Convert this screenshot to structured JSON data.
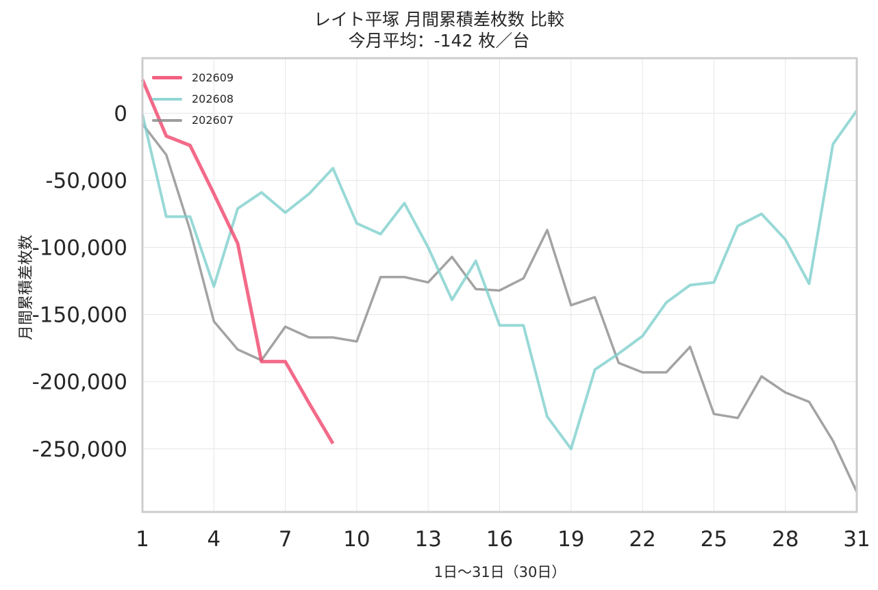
{
  "chart_data": {
    "type": "line",
    "title": "レイト平塚 月間累積差枚数 比較",
    "subtitle": "今月平均：-142 枚／台",
    "xlabel": "1日〜31日（30日）",
    "ylabel": "月間累積差枚数",
    "xlim": [
      1,
      31
    ],
    "ylim": [
      -297000,
      41000
    ],
    "x_ticks": [
      1,
      4,
      7,
      10,
      13,
      16,
      19,
      22,
      25,
      28,
      31
    ],
    "y_ticks": [
      0,
      -50000,
      -100000,
      -150000,
      -200000,
      -250000
    ],
    "y_tick_labels": [
      "0",
      "-50,000",
      "-100,000",
      "-150,000",
      "-200,000",
      "-250,000"
    ],
    "grid": true,
    "legend_position": "top-left",
    "series": [
      {
        "name": "202609",
        "color": "#f0456b",
        "x": [
          1,
          2,
          3,
          4,
          5,
          6,
          7,
          8,
          9
        ],
        "values": [
          25000,
          -17000,
          -24000,
          -60000,
          -97000,
          -185000,
          -185000,
          -216000,
          -246000
        ]
      },
      {
        "name": "202608",
        "color": "#7ed0cd",
        "x": [
          1,
          2,
          3,
          4,
          5,
          6,
          7,
          8,
          9,
          10,
          11,
          12,
          13,
          14,
          15,
          16,
          17,
          18,
          19,
          20,
          21,
          22,
          23,
          24,
          25,
          26,
          27,
          28,
          29,
          30,
          31
        ],
        "values": [
          -1000,
          -77000,
          -77000,
          -129000,
          -71000,
          -59000,
          -74000,
          -60000,
          -41000,
          -82000,
          -90000,
          -67000,
          -100000,
          -139000,
          -110000,
          -158000,
          -158000,
          -226000,
          -250000,
          -191000,
          -179000,
          -166000,
          -141000,
          -128000,
          -126000,
          -84000,
          -75000,
          -94000,
          -127000,
          -23000,
          2000
        ]
      },
      {
        "name": "202607",
        "color": "#8c8c8c",
        "x": [
          1,
          2,
          3,
          4,
          5,
          6,
          7,
          8,
          9,
          10,
          11,
          12,
          13,
          14,
          15,
          16,
          17,
          18,
          19,
          20,
          21,
          22,
          23,
          24,
          25,
          26,
          27,
          28,
          29,
          30,
          31
        ],
        "values": [
          -8000,
          -31000,
          -87000,
          -155000,
          -176000,
          -184000,
          -159000,
          -167000,
          -167000,
          -170000,
          -122000,
          -122000,
          -126000,
          -107000,
          -131000,
          -132000,
          -123000,
          -87000,
          -143000,
          -137000,
          -186000,
          -193000,
          -193000,
          -174000,
          -224000,
          -227000,
          -196000,
          -208000,
          -215000,
          -244000,
          -282000
        ]
      }
    ]
  }
}
